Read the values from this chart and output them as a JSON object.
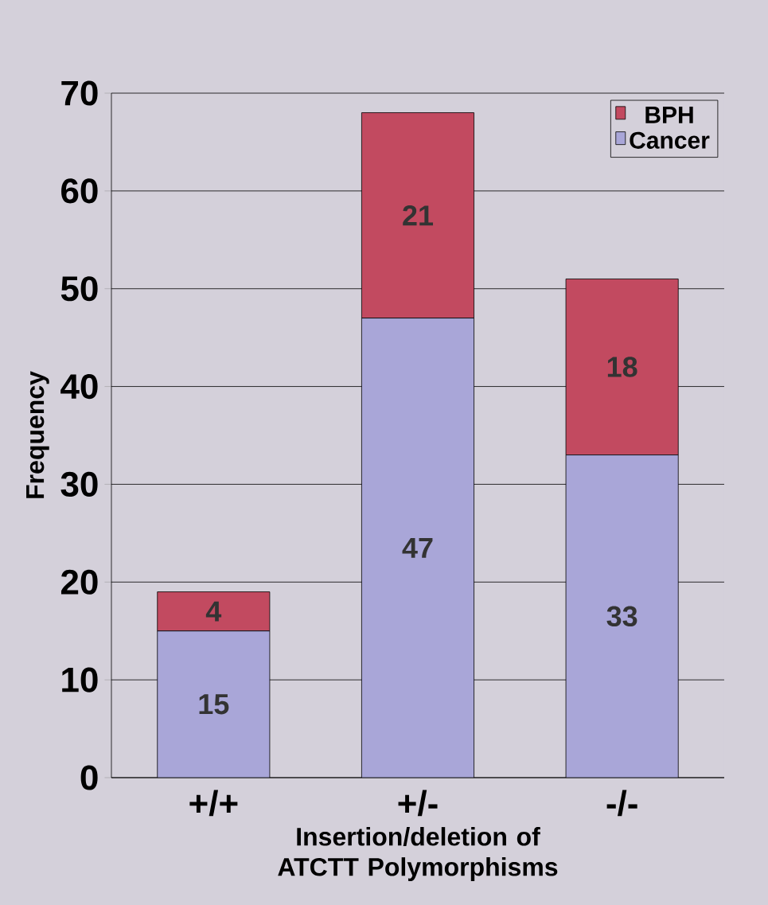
{
  "chart_data": {
    "type": "bar",
    "stacked": true,
    "categories": [
      "+/+",
      "+/-",
      "-/-"
    ],
    "series": [
      {
        "name": "Cancer",
        "color": "#a9a6d8",
        "values": [
          15,
          47,
          33
        ]
      },
      {
        "name": "BPH",
        "color": "#c24a60",
        "values": [
          4,
          21,
          18
        ]
      }
    ],
    "xlabel": "Insertion/deletion of ATCTT Polymorphisms",
    "ylabel": "Frequency",
    "ylim": [
      0,
      70
    ],
    "yticks": [
      0,
      10,
      20,
      30,
      40,
      50,
      60,
      70
    ],
    "grid": "y",
    "legend": "top right",
    "data_labels": true
  }
}
